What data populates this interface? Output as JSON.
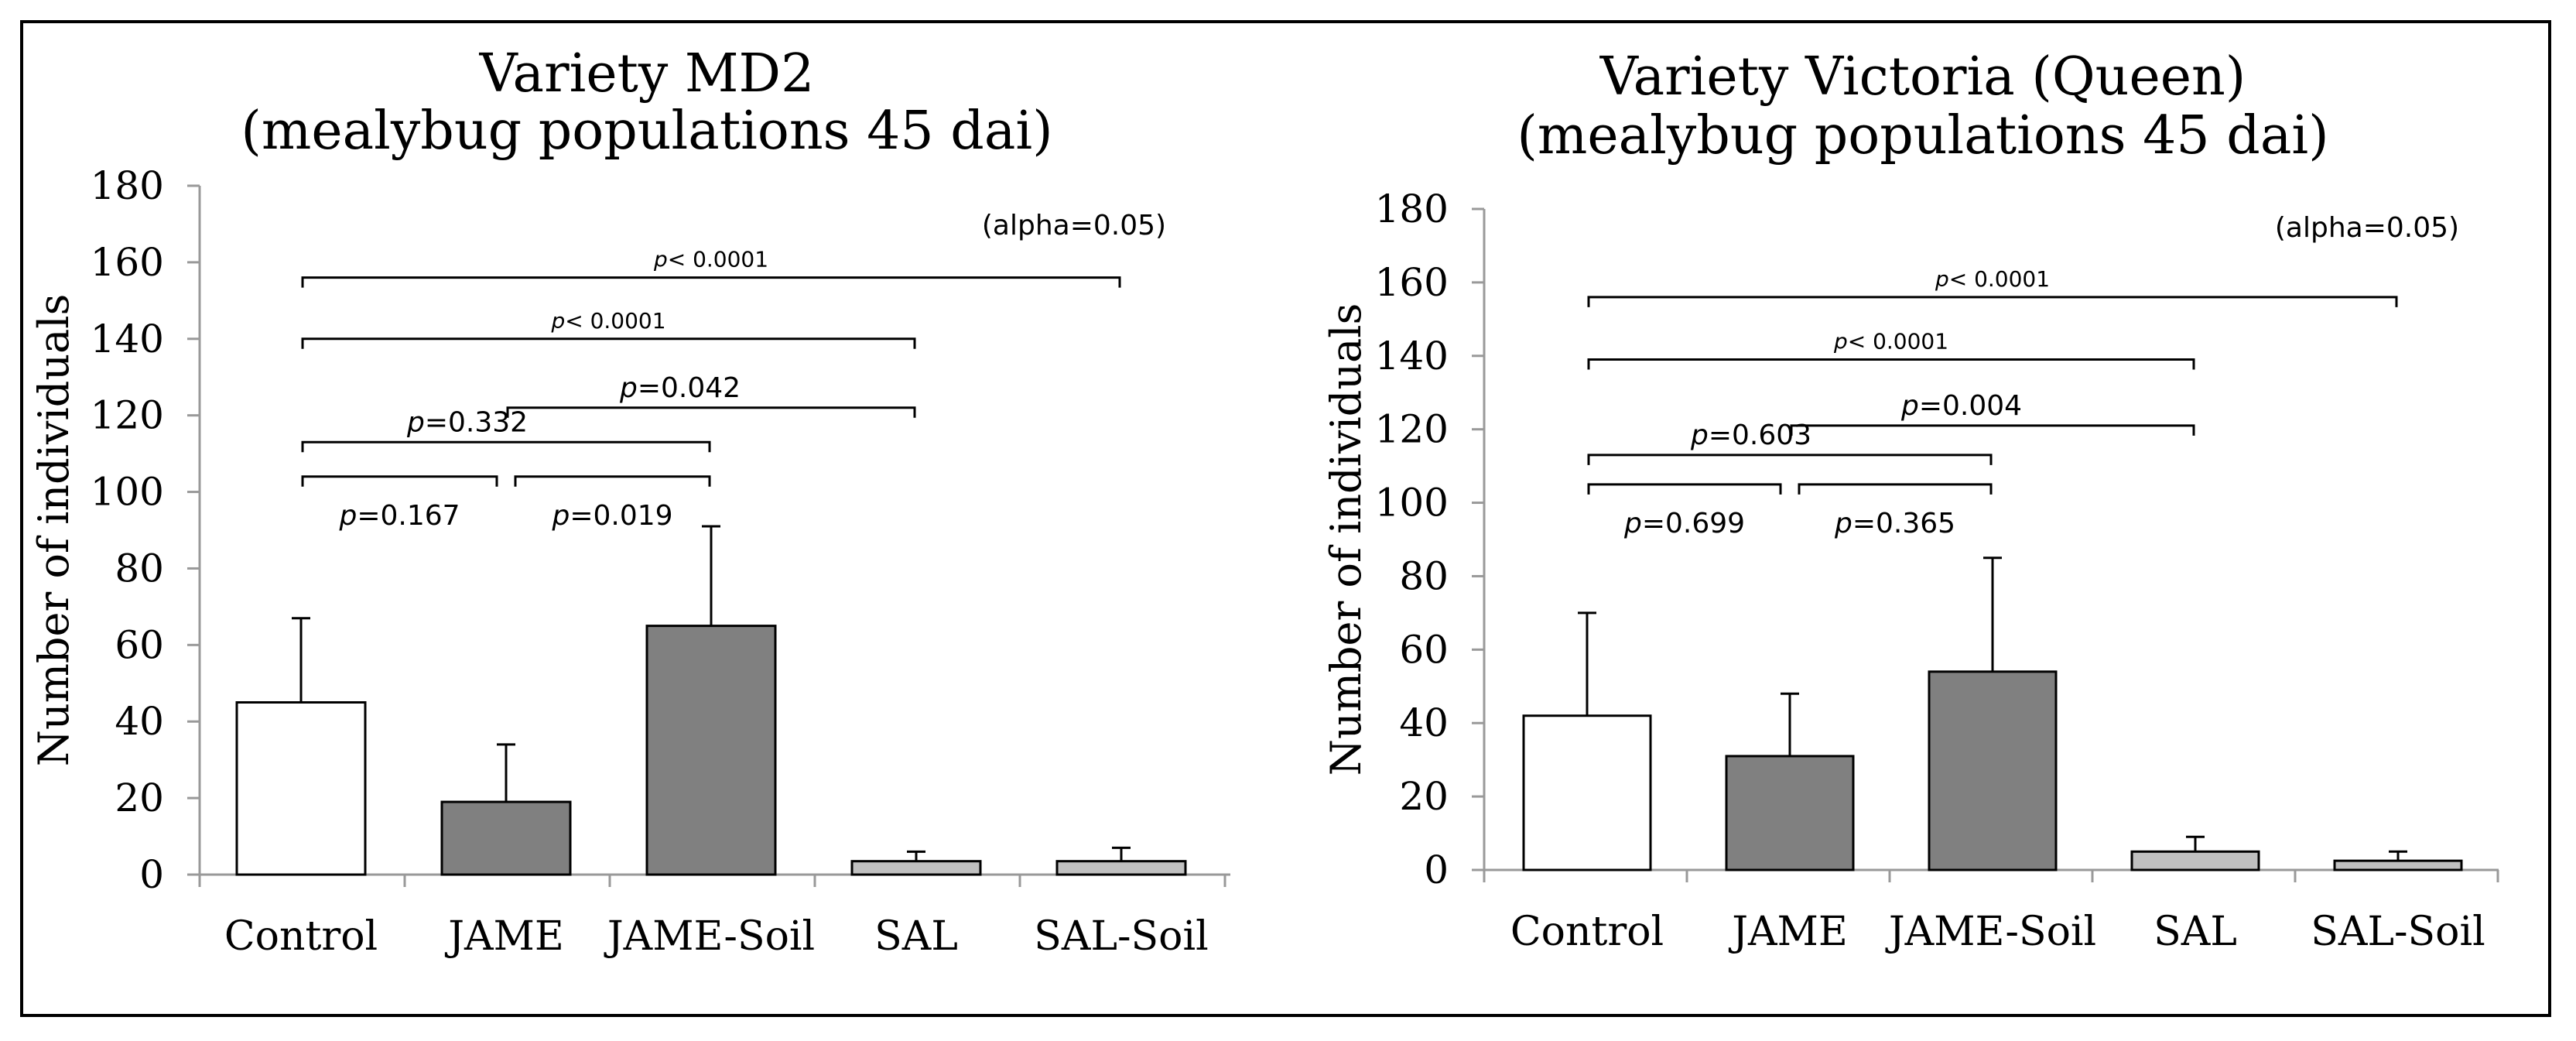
{
  "colors": {
    "control": "#ffffff",
    "jame": "#808080",
    "sal": "#c0c0c0",
    "stroke": "#000000"
  },
  "chart_data": [
    {
      "type": "bar",
      "title_line1": "Variety MD2",
      "title_line2": "(mealybug populations 45 dai)",
      "ylabel": "Number of individuals",
      "xlabel": "",
      "categories": [
        "Control",
        "JAME",
        "JAME-Soil",
        "SAL",
        "SAL-Soil"
      ],
      "values": [
        45,
        19,
        65,
        3.5,
        3.5
      ],
      "errors": [
        22,
        15,
        26,
        2.5,
        3.5
      ],
      "ylim": [
        0,
        180
      ],
      "yticks": [
        0,
        20,
        40,
        60,
        80,
        100,
        120,
        140,
        160,
        180
      ],
      "alpha_note": "(alpha=0.05)",
      "brackets": [
        {
          "from": 0,
          "to": 4,
          "y": 156,
          "prefix": "p",
          "value": "< 0.0001",
          "small": true
        },
        {
          "from": 0,
          "to": 3,
          "y": 140,
          "prefix": "p",
          "value": "< 0.0001",
          "small": true
        },
        {
          "from": 1,
          "to": 3,
          "y": 122,
          "prefix": "p",
          "value": "=0.042",
          "small": false
        },
        {
          "from": 0,
          "to": 2,
          "y": 113,
          "prefix": "p",
          "value": "=0.332",
          "small": false
        },
        {
          "from": 0,
          "to": 1,
          "y": 104,
          "prefix": "p",
          "value": "=0.167",
          "small": false,
          "below": true
        },
        {
          "from": 1,
          "to": 2,
          "y": 104,
          "prefix": "p",
          "value": "=0.019",
          "small": false,
          "below": true
        }
      ]
    },
    {
      "type": "bar",
      "title_line1": "Variety Victoria (Queen)",
      "title_line2": "(mealybug populations 45 dai)",
      "ylabel": "Number of individuals",
      "xlabel": "",
      "categories": [
        "Control",
        "JAME",
        "JAME-Soil",
        "SAL",
        "SAL-Soil"
      ],
      "values": [
        42,
        31,
        54,
        5,
        2.5
      ],
      "errors": [
        28,
        17,
        31,
        4,
        2.5
      ],
      "ylim": [
        0,
        180
      ],
      "yticks": [
        0,
        20,
        40,
        60,
        80,
        100,
        120,
        140,
        160,
        180
      ],
      "alpha_note": "(alpha=0.05)",
      "brackets": [
        {
          "from": 0,
          "to": 4,
          "y": 156,
          "prefix": "p",
          "value": "< 0.0001",
          "small": true
        },
        {
          "from": 0,
          "to": 3,
          "y": 139,
          "prefix": "p",
          "value": "< 0.0001",
          "small": true
        },
        {
          "from": 1,
          "to": 3,
          "y": 121,
          "prefix": "p",
          "value": "=0.004",
          "small": false
        },
        {
          "from": 0,
          "to": 2,
          "y": 113,
          "prefix": "p",
          "value": "=0.603",
          "small": false
        },
        {
          "from": 0,
          "to": 1,
          "y": 105,
          "prefix": "p",
          "value": "=0.699",
          "small": false,
          "below": true
        },
        {
          "from": 1,
          "to": 2,
          "y": 105,
          "prefix": "p",
          "value": "=0.365",
          "small": false,
          "below": true
        }
      ]
    }
  ]
}
